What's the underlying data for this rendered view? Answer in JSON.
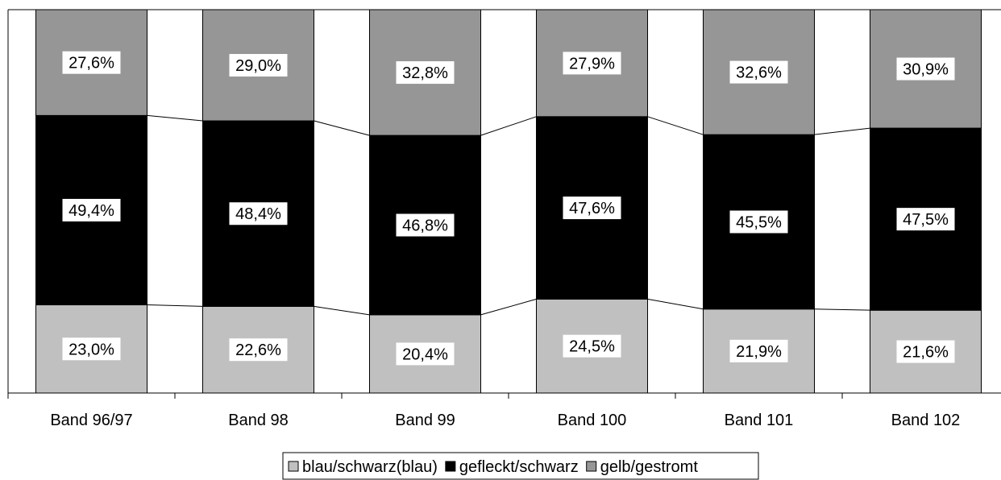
{
  "chart_data": {
    "type": "bar",
    "stacked": true,
    "normalized": true,
    "categories": [
      "Band 96/97",
      "Band 98",
      "Band 99",
      "Band 100",
      "Band 101",
      "Band 102"
    ],
    "series": [
      {
        "name": "blau/schwarz(blau)",
        "color": "#c0c0c0",
        "values": [
          23.0,
          22.6,
          20.4,
          24.5,
          21.9,
          21.6
        ],
        "labels": [
          "23,0%",
          "22,6%",
          "20,4%",
          "24,5%",
          "21,9%",
          "21,6%"
        ]
      },
      {
        "name": "gefleckt/schwarz",
        "color": "#000000",
        "values": [
          49.4,
          48.4,
          46.8,
          47.6,
          45.5,
          47.5
        ],
        "labels": [
          "49,4%",
          "48,4%",
          "46,8%",
          "47,6%",
          "45,5%",
          "47,5%"
        ]
      },
      {
        "name": "gelb/gestromt",
        "color": "#969696",
        "values": [
          27.6,
          29.0,
          32.8,
          27.9,
          32.6,
          30.9
        ],
        "labels": [
          "27,6%",
          "29,0%",
          "32,8%",
          "27,9%",
          "32,6%",
          "30,9%"
        ]
      }
    ],
    "series_lines": true,
    "ylim": [
      0,
      100
    ],
    "grid": false,
    "legend": "bottom-center",
    "title": "",
    "xlabel": "",
    "ylabel": ""
  }
}
